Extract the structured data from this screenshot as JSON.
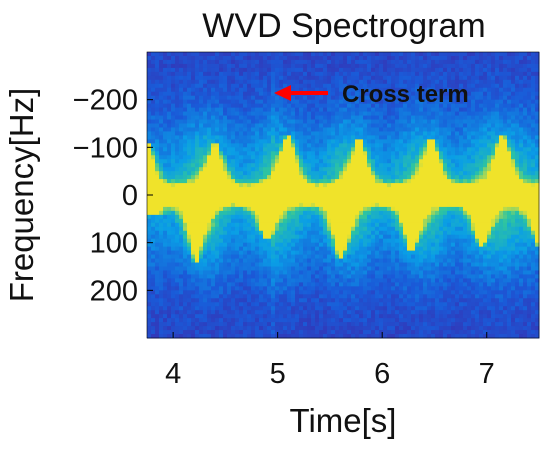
{
  "chart_data": {
    "type": "heatmap",
    "title": "WVD Spectrogram",
    "xlabel": "Time[s]",
    "ylabel": "Frequency[Hz]",
    "xlim": [
      3.75,
      7.5
    ],
    "ylim": [
      -300,
      300
    ],
    "y_axis_direction": "reversed (negative at top)",
    "x_ticks": [
      4,
      5,
      6,
      7
    ],
    "y_ticks": [
      -200,
      -100,
      0,
      100,
      200
    ],
    "y_tick_labels": [
      "−200",
      "−100",
      "0",
      "100",
      "200"
    ],
    "colormap": [
      "#3e26a8",
      "#1a5ad8",
      "#0a9ee6",
      "#2ec4a0",
      "#f0e32a"
    ],
    "background_level": 0.08,
    "center_band": {
      "frequency": 0,
      "half_width": 22,
      "level": 1.0
    },
    "bursts": [
      {
        "time": 3.75,
        "min_freq": -110,
        "max_freq": 40
      },
      {
        "time": 4.22,
        "min_freq": -20,
        "max_freq": 140
      },
      {
        "time": 4.4,
        "min_freq": -105,
        "max_freq": 20
      },
      {
        "time": 4.9,
        "min_freq": -20,
        "max_freq": 95
      },
      {
        "time": 5.1,
        "min_freq": -125,
        "max_freq": 20
      },
      {
        "time": 5.6,
        "min_freq": -20,
        "max_freq": 135
      },
      {
        "time": 5.78,
        "min_freq": -115,
        "max_freq": 20
      },
      {
        "time": 6.28,
        "min_freq": -20,
        "max_freq": 120
      },
      {
        "time": 6.47,
        "min_freq": -120,
        "max_freq": 20
      },
      {
        "time": 6.95,
        "min_freq": -20,
        "max_freq": 110
      },
      {
        "time": 7.15,
        "min_freq": -125,
        "max_freq": 20
      },
      {
        "time": 7.5,
        "min_freq": -20,
        "max_freq": 105
      }
    ],
    "cross_term": {
      "time": 4.97,
      "label": "Cross term",
      "arrow_color": "#ff0000"
    }
  }
}
